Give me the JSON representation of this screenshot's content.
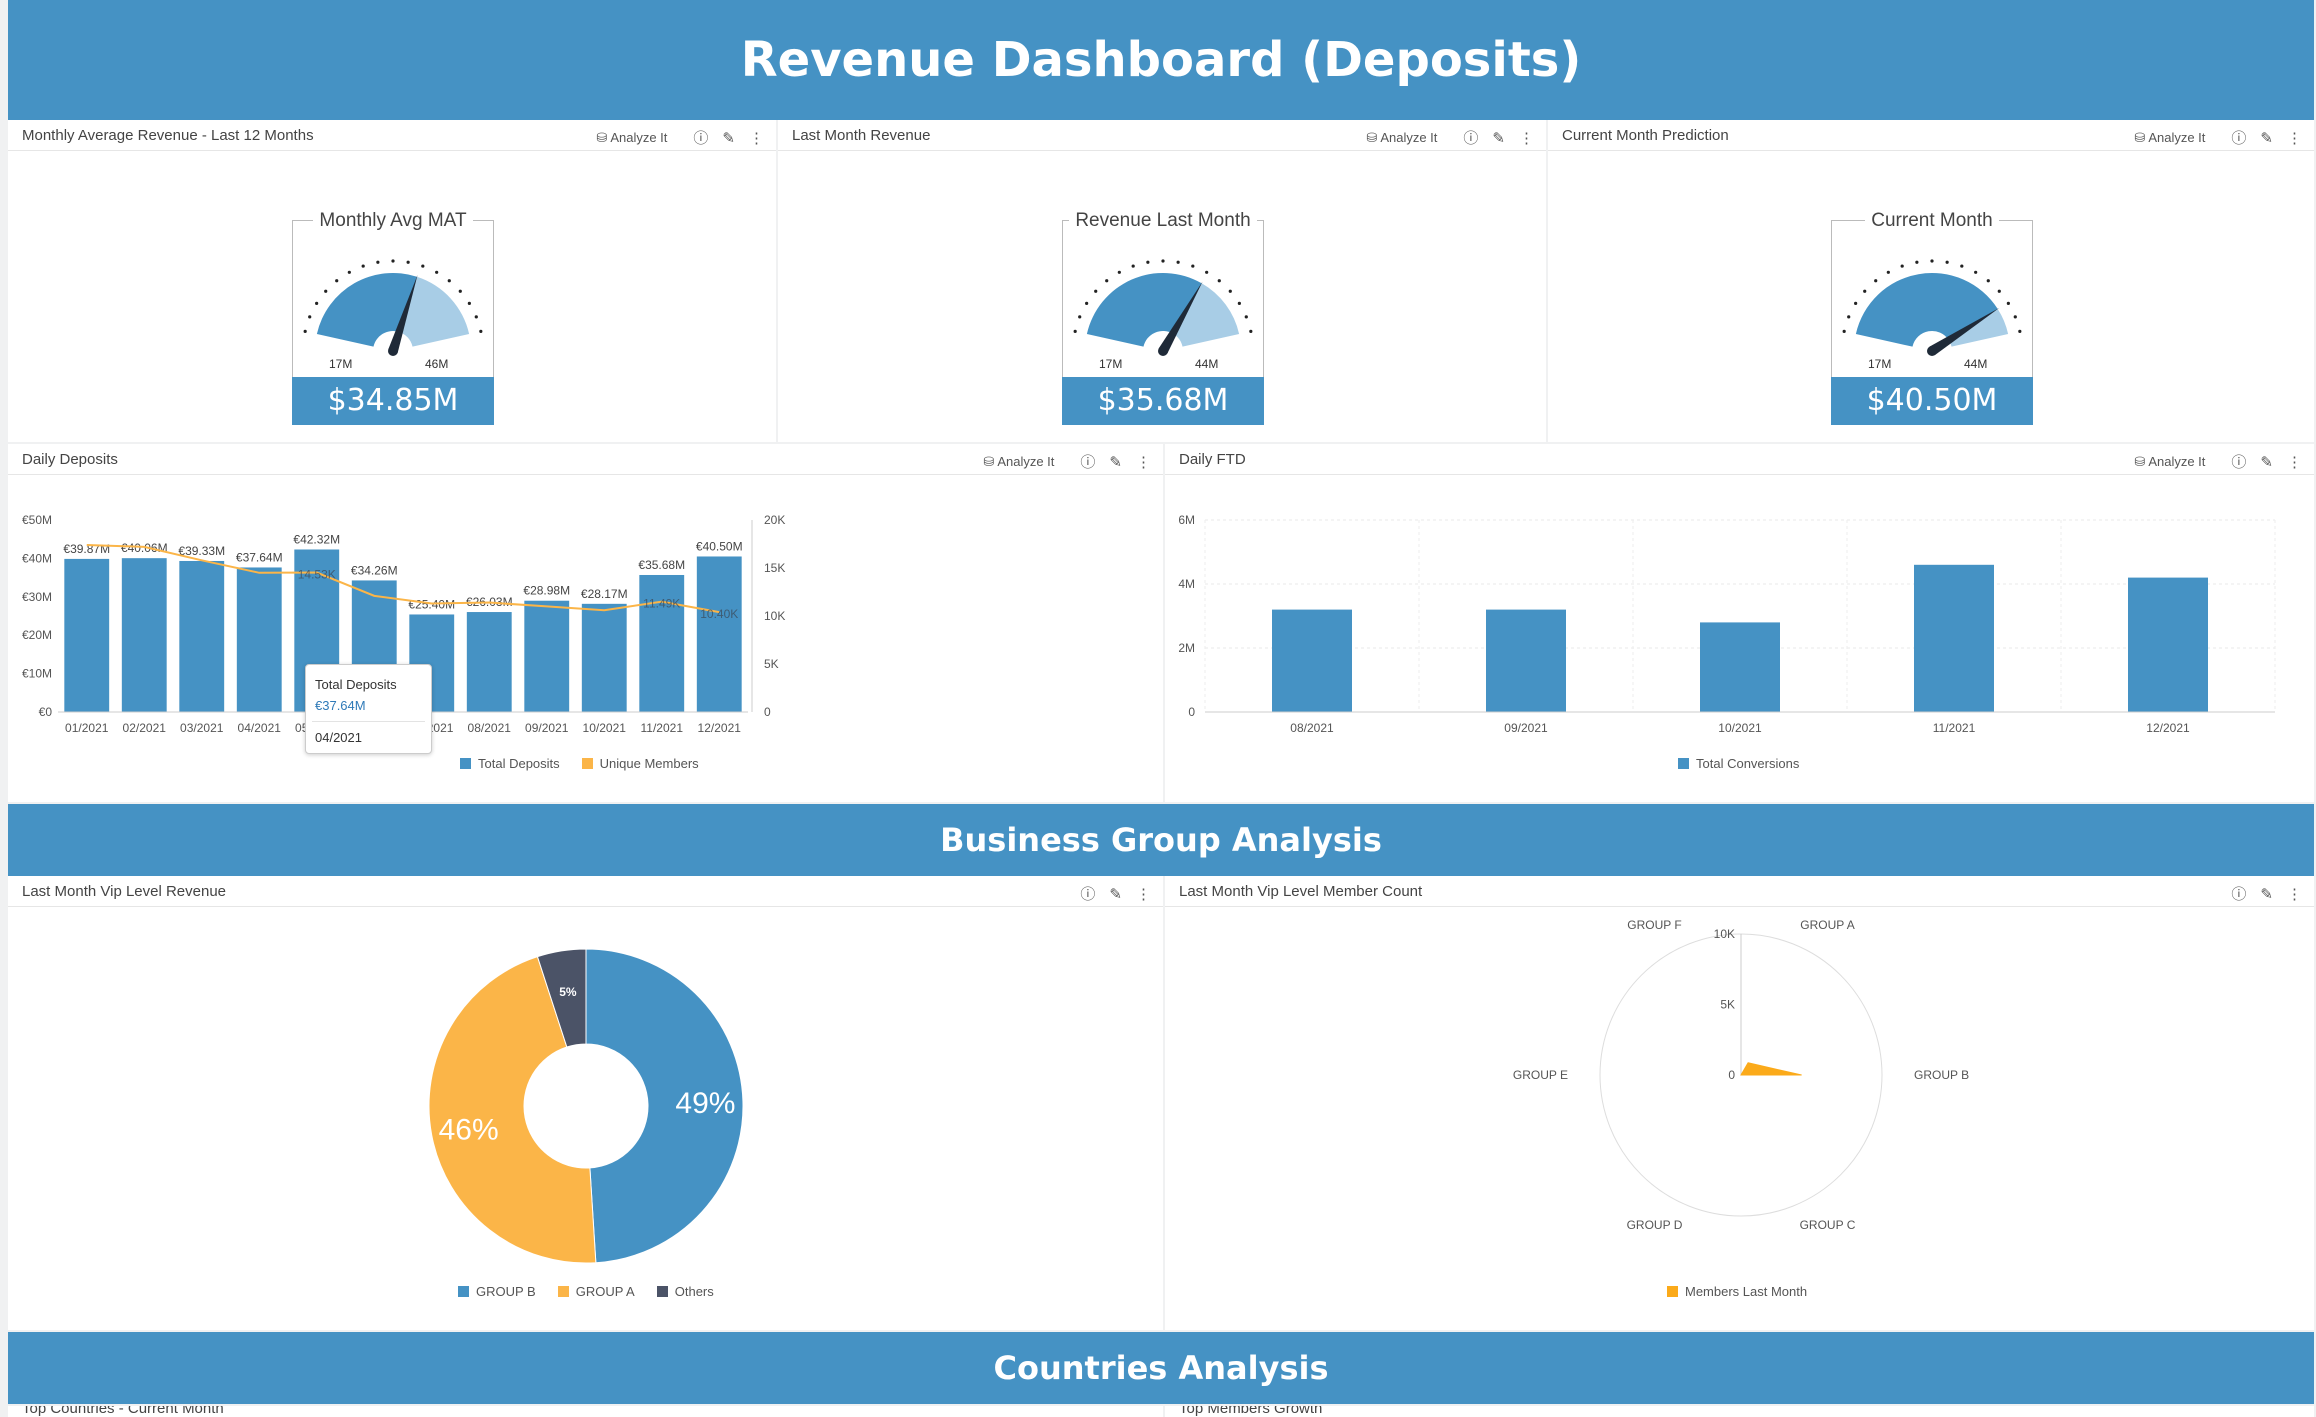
{
  "dashboard": {
    "title": "Revenue Dashboard (Deposits)",
    "section2": "Business Group Analysis",
    "section3": "Countries Analysis"
  },
  "common": {
    "analyze_label": "Analyze It"
  },
  "colors": {
    "accent": "#4592c4",
    "gauge_light": "#a8cde6",
    "orange": "#fbb548",
    "others": "#4b5367",
    "radar": "#fbaa1a"
  },
  "gauges": [
    {
      "panel_title": "Monthly Average Revenue - Last 12 Months",
      "title": "Monthly Avg MAT",
      "min": "17M",
      "max": "46M",
      "min_value": 17,
      "max_value": 46,
      "value_num": 34.85,
      "value": "$34.85M"
    },
    {
      "panel_title": "Last Month Revenue",
      "title": "Revenue Last Month",
      "min": "17M",
      "max": "44M",
      "min_value": 17,
      "max_value": 44,
      "value_num": 35.68,
      "value": "$35.68M"
    },
    {
      "panel_title": "Current Month Prediction",
      "title": "Current Month",
      "min": "17M",
      "max": "44M",
      "min_value": 17,
      "max_value": 44,
      "value_num": 40.5,
      "value": "$40.50M"
    }
  ],
  "daily_deposits": {
    "panel_title": "Daily Deposits",
    "tooltip": {
      "title": "Total Deposits",
      "value": "€37.64M",
      "date": "04/2021"
    },
    "legend": [
      "Total Deposits",
      "Unique Members"
    ],
    "unique_labels": [
      "14.53K",
      "11.49K",
      "10.40K"
    ]
  },
  "daily_ftd": {
    "panel_title": "Daily FTD",
    "legend": [
      "Total Conversions"
    ]
  },
  "vip_revenue": {
    "panel_title": "Last Month Vip Level Revenue",
    "legend": [
      "GROUP B",
      "GROUP A",
      "Others"
    ]
  },
  "vip_members": {
    "panel_title": "Last Month Vip Level Member Count",
    "legend": [
      "Members Last Month"
    ]
  },
  "bottom_panels": {
    "left_title": "Top Countries - Current Month",
    "right_title": "Top Members Growth"
  },
  "chart_data": [
    {
      "type": "bar",
      "id": "daily_deposits",
      "categories": [
        "01/2021",
        "02/2021",
        "03/2021",
        "04/2021",
        "05/2021",
        "06/2021",
        "07/2021",
        "08/2021",
        "09/2021",
        "10/2021",
        "11/2021",
        "12/2021"
      ],
      "series": [
        {
          "name": "Total Deposits",
          "values": [
            39.87,
            40.06,
            39.33,
            37.64,
            42.32,
            34.26,
            25.4,
            26.03,
            28.98,
            28.17,
            35.68,
            40.5
          ],
          "labels": [
            "€39.87M",
            "€40.06M",
            "€39.33M",
            "€37.64M",
            "€42.32M",
            "€34.26M",
            "€25.40M",
            "€26.03M",
            "€28.98M",
            "€28.17M",
            "€35.68M",
            "€40.50M"
          ]
        },
        {
          "name": "Unique Members",
          "type": "line",
          "axis": "right",
          "values": [
            17.4,
            17.2,
            15.8,
            14.5,
            14.53,
            12.1,
            11.3,
            11.4,
            11.0,
            10.6,
            11.49,
            10.4
          ]
        }
      ],
      "ylim": [
        0,
        50
      ],
      "y_ticks": [
        "€0",
        "€10M",
        "€20M",
        "€30M",
        "€40M",
        "€50M"
      ],
      "y2lim": [
        0,
        20
      ],
      "y2_ticks": [
        "0",
        "5K",
        "10K",
        "15K",
        "20K"
      ]
    },
    {
      "type": "bar",
      "id": "daily_ftd",
      "categories": [
        "08/2021",
        "09/2021",
        "10/2021",
        "11/2021",
        "12/2021"
      ],
      "series": [
        {
          "name": "Total Conversions",
          "values": [
            3.2,
            3.2,
            2.8,
            4.6,
            4.2
          ]
        }
      ],
      "ylim": [
        0,
        6
      ],
      "y_ticks": [
        "0",
        "2M",
        "4M",
        "6M"
      ]
    },
    {
      "type": "pie",
      "id": "vip_revenue",
      "labels": [
        "GROUP B",
        "GROUP A",
        "Others"
      ],
      "values": [
        49,
        46,
        5
      ],
      "value_labels": [
        "49%",
        "46%",
        "5%"
      ]
    },
    {
      "type": "radar",
      "id": "vip_members",
      "axes": [
        "GROUP A",
        "GROUP B",
        "GROUP C",
        "GROUP D",
        "GROUP E",
        "GROUP F"
      ],
      "series": [
        {
          "name": "Members Last Month",
          "values": [
            1000,
            4300,
            0,
            0,
            0,
            0
          ]
        }
      ],
      "rlim": [
        0,
        10000
      ],
      "r_ticks": [
        "0",
        "5K",
        "10K"
      ]
    }
  ]
}
